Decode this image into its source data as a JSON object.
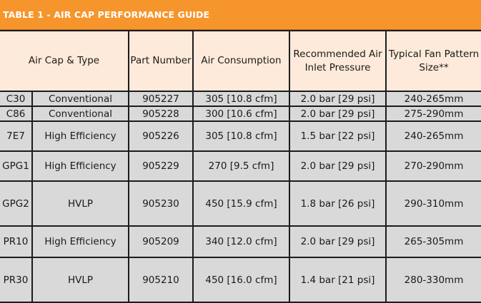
{
  "title": "TABLE 1 - AIR CAP PERFORMANCE GUIDE",
  "headers": {
    "air_cap_type": "Air Cap & Type",
    "part_number": "Part Number",
    "air_consumption": "Air Consumption",
    "inlet_pressure": "Recommended Air Inlet Pressure",
    "fan_pattern": "Typical Fan Pattern Size**"
  },
  "rows": [
    {
      "cap": "C30",
      "type": "Conventional",
      "part": "905227",
      "consumption": "305 [10.8 cfm]",
      "pressure": "2.0 bar [29 psi]",
      "fan": "240-265mm"
    },
    {
      "cap": "C86",
      "type": "Conventional",
      "part": "905228",
      "consumption": "300 [10.6 cfm]",
      "pressure": "2.0 bar [29 psi]",
      "fan": "275-290mm"
    },
    {
      "cap": "7E7",
      "type": "High Efficiency",
      "part": "905226",
      "consumption": "305 [10.8 cfm]",
      "pressure": "1.5 bar [22 psi]",
      "fan": "240-265mm"
    },
    {
      "cap": "GPG1",
      "type": "High Efficiency",
      "part": "905229",
      "consumption": "270 [9.5 cfm]",
      "pressure": "2.0 bar [29 psi]",
      "fan": "270-290mm"
    },
    {
      "cap": "GPG2",
      "type": "HVLP",
      "part": "905230",
      "consumption": "450 [15.9 cfm]",
      "pressure": "1.8 bar [26 psi]",
      "fan": "290-310mm"
    },
    {
      "cap": "PR10",
      "type": "High Efficiency",
      "part": "905209",
      "consumption": "340 [12.0 cfm]",
      "pressure": "2.0 bar [29 psi]",
      "fan": "265-305mm"
    },
    {
      "cap": "PR30",
      "type": "HVLP",
      "part": "905210",
      "consumption": "450 [16.0 cfm]",
      "pressure": "1.4 bar [21 psi]",
      "fan": "280-330mm"
    }
  ]
}
